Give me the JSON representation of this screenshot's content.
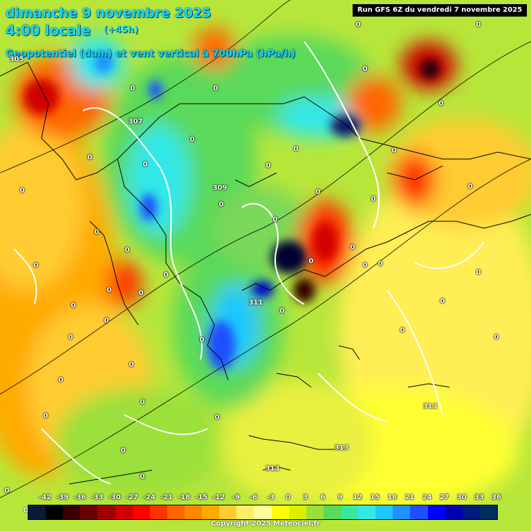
{
  "header": {
    "date_line": "dimanche 9 novembre 2025",
    "time_line": "4:00 locale",
    "lead_time": "(+45h)",
    "parameter": "Geopotentiel (dam) et vent vertical à 700hPa (hPa/h)",
    "run_info": "Run GFS 6Z du vendredi 7 novembre 2025"
  },
  "zero_labels": [
    "0"
  ],
  "geopotential_labels": [
    "305",
    "307",
    "309",
    "311",
    "313",
    "313",
    "313"
  ],
  "legend": {
    "zero_mark": "0",
    "ticks": [
      "-42",
      "-39",
      "-36",
      "-33",
      "-30",
      "-27",
      "-24",
      "-21",
      "-18",
      "-15",
      "-12",
      "-9",
      "-6",
      "-3",
      "0",
      "3",
      "6",
      "9",
      "12",
      "15",
      "18",
      "21",
      "24",
      "27",
      "30",
      "33",
      "36"
    ],
    "colors": [
      "#0a1a3a",
      "#000000",
      "#3a0000",
      "#6b0000",
      "#a00000",
      "#d00000",
      "#ff0000",
      "#ff3300",
      "#ff6600",
      "#ff8800",
      "#ffaa00",
      "#ffcc33",
      "#ffee66",
      "#ffff99",
      "#ffff00",
      "#d8f000",
      "#9be03a",
      "#5ad95a",
      "#3ae6a0",
      "#33e8e8",
      "#1ec8ff",
      "#1e90ff",
      "#1e50ff",
      "#0000ff",
      "#0000b0",
      "#001a80",
      "#002a60"
    ]
  },
  "copyright": "Copyright 2025 Meteociel.fr"
}
